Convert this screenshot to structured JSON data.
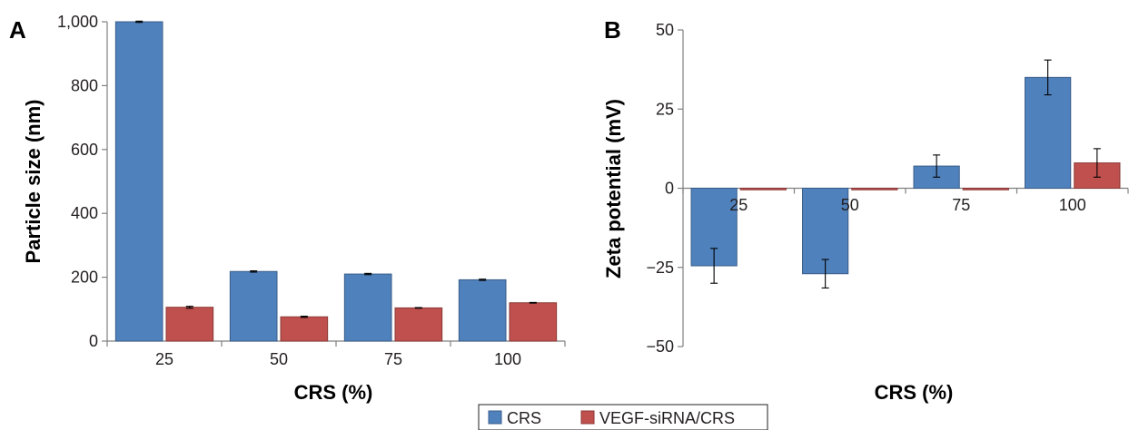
{
  "chart_data": [
    {
      "panel": "A",
      "type": "bar",
      "categories": [
        "25",
        "50",
        "75",
        "100"
      ],
      "series": [
        {
          "name": "CRS",
          "color": "#4f81bd",
          "values": [
            1000,
            218,
            210,
            192
          ],
          "errors": [
            2,
            2,
            2,
            2
          ]
        },
        {
          "name": "VEGF-siRNA/CRS",
          "color": "#c0504d",
          "values": [
            106,
            76,
            104,
            120
          ],
          "errors": [
            3,
            2,
            1,
            1
          ]
        }
      ],
      "xlabel": "CRS (%)",
      "ylabel": "Particle size (nm)",
      "ylim": [
        0,
        1000
      ],
      "yticks": [
        0,
        200,
        400,
        600,
        800,
        1000
      ],
      "ytick_labels": [
        "0",
        "200",
        "400",
        "600",
        "800",
        "1,000"
      ],
      "grid": false
    },
    {
      "panel": "B",
      "type": "bar",
      "categories": [
        "25",
        "50",
        "75",
        "100"
      ],
      "series": [
        {
          "name": "CRS",
          "color": "#4f81bd",
          "values": [
            -24.5,
            -27,
            7,
            35
          ],
          "errors": [
            5.5,
            4.5,
            3.5,
            5.5
          ]
        },
        {
          "name": "VEGF-siRNA/CRS",
          "color": "#c0504d",
          "values": [
            -0.5,
            -0.5,
            -0.5,
            8
          ],
          "errors": [
            0,
            0,
            0,
            4.5
          ]
        }
      ],
      "xlabel": "CRS (%)",
      "ylabel": "Zeta potential (mV)",
      "ylim": [
        -50,
        50
      ],
      "yticks": [
        -50,
        -25,
        0,
        25,
        50
      ],
      "ytick_labels": [
        "−50",
        "−25",
        "0",
        "25",
        "50"
      ],
      "grid": false
    }
  ],
  "legend": {
    "placement": "bottom-center",
    "items": [
      {
        "label": "CRS",
        "color": "#4f81bd"
      },
      {
        "label": "VEGF-siRNA/CRS",
        "color": "#c0504d"
      }
    ]
  }
}
